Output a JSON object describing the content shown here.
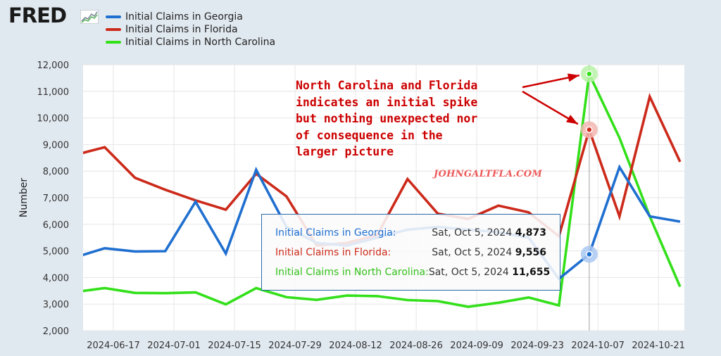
{
  "logo": {
    "text": "FRED"
  },
  "colors": {
    "georgia": "#1f6fd0",
    "florida": "#cc2a1a",
    "north_carolina": "#33e01a",
    "background": "#e1e9f0",
    "plot_bg": "#ffffff"
  },
  "annotation": {
    "lines": [
      "North Carolina and Florida",
      "indicates an initial spike",
      "but nothing unexpected nor",
      "of consequence in the",
      "larger picture"
    ]
  },
  "watermark": "JOHNGALTFLA.COM",
  "tooltip": {
    "rows": [
      {
        "label": "Initial Claims in Georgia:",
        "date": "Sat, Oct 5, 2024",
        "value": "4,873"
      },
      {
        "label": "Initial Claims in Florida:",
        "date": "Sat, Oct 5, 2024",
        "value": "9,556"
      },
      {
        "label": "Initial Claims in North Carolina:",
        "date": "Sat, Oct 5, 2024",
        "value": "11,655"
      }
    ]
  },
  "chart_data": {
    "type": "line",
    "ylabel": "Number",
    "xlabel": "",
    "ylim": [
      2000,
      12000
    ],
    "yticks": [
      "2,000",
      "3,000",
      "4,000",
      "5,000",
      "6,000",
      "7,000",
      "8,000",
      "9,000",
      "10,000",
      "11,000",
      "12,000"
    ],
    "xtick_labels": [
      "2024-06-17",
      "2024-07-01",
      "2024-07-15",
      "2024-07-29",
      "2024-08-12",
      "2024-08-26",
      "2024-09-09",
      "2024-09-23",
      "2024-10-07",
      "2024-10-21"
    ],
    "x": [
      "2024-06-08",
      "2024-06-15",
      "2024-06-22",
      "2024-06-29",
      "2024-07-06",
      "2024-07-13",
      "2024-07-20",
      "2024-07-27",
      "2024-08-03",
      "2024-08-10",
      "2024-08-17",
      "2024-08-24",
      "2024-08-31",
      "2024-09-07",
      "2024-09-14",
      "2024-09-21",
      "2024-09-28",
      "2024-10-05",
      "2024-10-12",
      "2024-10-19",
      "2024-10-26"
    ],
    "highlight_x": "2024-10-05",
    "grid": true,
    "legend": "top-left",
    "series": [
      {
        "name": "Initial Claims in Georgia",
        "color": "#1f6fd0",
        "values": [
          4750,
          5100,
          4980,
          4990,
          6850,
          4900,
          8050,
          5900,
          5300,
          5200,
          5500,
          5800,
          5900,
          5800,
          5700,
          5500,
          3950,
          4873,
          8150,
          6300,
          6100
        ]
      },
      {
        "name": "Initial Claims in Florida",
        "color": "#cc2a1a",
        "values": [
          8600,
          8900,
          7750,
          7300,
          6900,
          6550,
          7900,
          7050,
          5200,
          5300,
          5600,
          7700,
          6400,
          6200,
          6700,
          6450,
          5550,
          9556,
          6300,
          10800,
          8350
        ]
      },
      {
        "name": "Initial Claims in North Carolina",
        "color": "#33e01a",
        "values": [
          3450,
          3600,
          3420,
          3410,
          3440,
          2990,
          3600,
          3260,
          3160,
          3320,
          3300,
          3150,
          3110,
          2900,
          3050,
          3250,
          2950,
          11655,
          9250,
          6300,
          3650
        ]
      }
    ]
  }
}
